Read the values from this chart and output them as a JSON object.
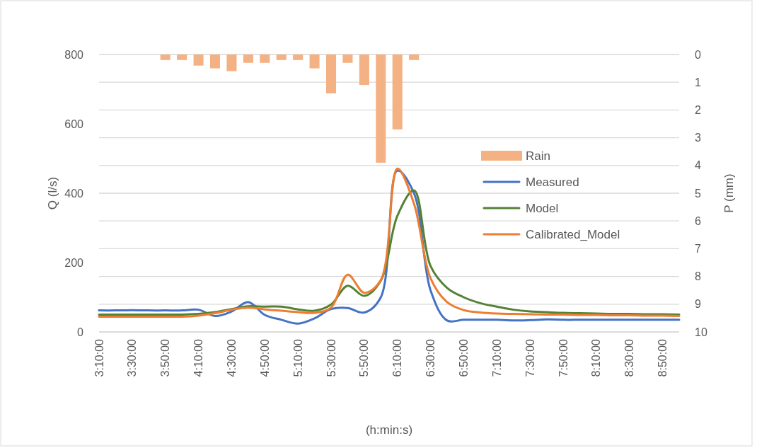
{
  "chart_data": {
    "type": "line",
    "xlabel": "(h:min:s)",
    "ylabel": "Q (l/s)",
    "y2label": "P (mm)",
    "categories": [
      "3:10:00",
      null,
      "3:30:00",
      null,
      "3:50:00",
      null,
      "4:10:00",
      null,
      "4:30:00",
      null,
      "4:50:00",
      null,
      "5:10:00",
      null,
      "5:30:00",
      null,
      "5:50:00",
      null,
      "6:10:00",
      null,
      "6:30:00",
      null,
      "6:50:00",
      null,
      "7:10:00",
      null,
      "7:30:00",
      null,
      "7:50:00",
      null,
      "8:10:00",
      null,
      "8:30:00",
      null,
      "8:50:00",
      null
    ],
    "series": [
      {
        "name": "Rain",
        "type": "bar",
        "axis": "y2",
        "color": "#f4b183",
        "values": [
          null,
          null,
          null,
          null,
          0.2,
          0.2,
          0.4,
          0.5,
          0.6,
          0.3,
          0.3,
          0.2,
          0.2,
          0.5,
          1.4,
          0.3,
          1.1,
          3.9,
          2.7,
          0.2,
          null,
          null,
          null,
          null,
          null,
          null,
          null,
          null,
          null,
          null,
          null,
          null,
          null,
          null,
          null,
          null
        ]
      },
      {
        "name": "Measured",
        "color": "#4472c4",
        "values": [
          62,
          62,
          63,
          62,
          62,
          62,
          64,
          46,
          59,
          86,
          49,
          35,
          24,
          39,
          66,
          69,
          56,
          100,
          465,
          400,
          120,
          33,
          35,
          35,
          35,
          33,
          34,
          36,
          35,
          35,
          35,
          35,
          35,
          35,
          35,
          35
        ]
      },
      {
        "name": "Model",
        "color": "#548235",
        "values": [
          50,
          50,
          50,
          50,
          50,
          50,
          52,
          57,
          66,
          74,
          73,
          73,
          65,
          61,
          79,
          133,
          104,
          148,
          335,
          408,
          190,
          127,
          100,
          83,
          73,
          64,
          59,
          57,
          55,
          54,
          53,
          52,
          52,
          51,
          51,
          50
        ]
      },
      {
        "name": "Calibrated_Model",
        "color": "#ed7d31",
        "values": [
          44,
          44,
          44,
          44,
          44,
          44,
          47,
          54,
          64,
          70,
          65,
          61,
          57,
          55,
          70,
          165,
          113,
          150,
          471,
          370,
          155,
          86,
          63,
          56,
          53,
          52,
          51,
          50,
          50,
          49,
          49,
          48,
          48,
          47,
          47,
          46
        ]
      }
    ],
    "ylim": [
      0,
      800
    ],
    "yticks": [
      0,
      200,
      400,
      600,
      800
    ],
    "y2lim": [
      10,
      0
    ],
    "y2ticks": [
      0,
      1,
      2,
      3,
      4,
      5,
      6,
      7,
      8,
      9,
      10
    ],
    "grid": true,
    "legend": "right"
  }
}
